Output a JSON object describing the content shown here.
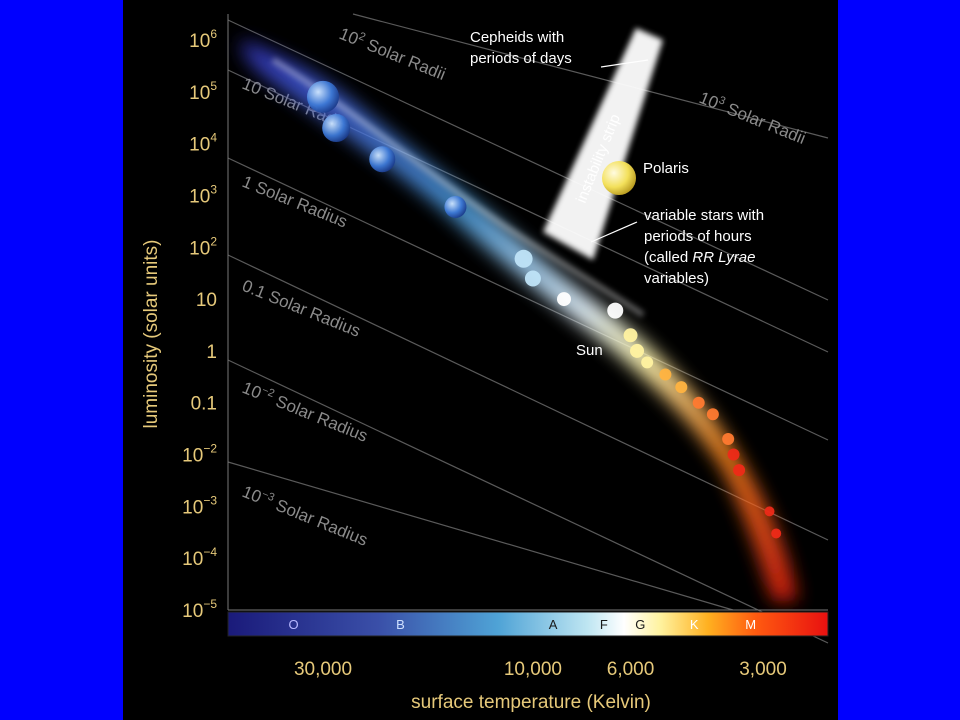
{
  "chart_data": {
    "type": "scatter",
    "xlabel": "surface temperature (Kelvin)",
    "ylabel": "luminosity (solar units)",
    "x_scale": "log-reversed",
    "y_scale": "log",
    "ylim": [
      1e-05,
      1000000.0
    ],
    "x_ticks": [
      {
        "value": 30000,
        "label": "30,000"
      },
      {
        "value": 10000,
        "label": "10,000"
      },
      {
        "value": 6000,
        "label": "6,000"
      },
      {
        "value": 3000,
        "label": "3,000"
      }
    ],
    "y_ticks": [
      {
        "value": 1000000.0,
        "base": "10",
        "exp": "6"
      },
      {
        "value": 100000.0,
        "base": "10",
        "exp": "5"
      },
      {
        "value": 10000.0,
        "base": "10",
        "exp": "4"
      },
      {
        "value": 1000.0,
        "base": "10",
        "exp": "3"
      },
      {
        "value": 100.0,
        "base": "10",
        "exp": "2"
      },
      {
        "value": 10,
        "base": "10",
        "exp": ""
      },
      {
        "value": 1,
        "base": "1",
        "exp": ""
      },
      {
        "value": 0.1,
        "base": "0.1",
        "exp": ""
      },
      {
        "value": 0.01,
        "base": "10",
        "exp": "−2"
      },
      {
        "value": 0.001,
        "base": "10",
        "exp": "−3"
      },
      {
        "value": 0.0001,
        "base": "10",
        "exp": "−4"
      },
      {
        "value": 1e-05,
        "base": "10",
        "exp": "−5"
      }
    ],
    "spectral_classes": [
      {
        "label": "O",
        "temp": 35000
      },
      {
        "label": "B",
        "temp": 20000
      },
      {
        "label": "A",
        "temp": 9000
      },
      {
        "label": "F",
        "temp": 6900
      },
      {
        "label": "G",
        "temp": 5700
      },
      {
        "label": "K",
        "temp": 4300
      },
      {
        "label": "M",
        "temp": 3200
      }
    ],
    "radius_lines": [
      {
        "pre": "10",
        "exp": "3",
        "post": " Solar Radii",
        "gridline": true
      },
      {
        "pre": "10",
        "exp": "2",
        "post": " Solar Radii",
        "gridline": true
      },
      {
        "pre": "10",
        "exp": "",
        "post": " Solar Radii",
        "gridline": true
      },
      {
        "pre": "1",
        "exp": "",
        "post": " Solar Radius",
        "gridline": true
      },
      {
        "pre": "0.1",
        "exp": "",
        "post": " Solar Radius",
        "gridline": true
      },
      {
        "pre": "10",
        "exp": "−2",
        "post": " Solar Radius",
        "gridline": true
      },
      {
        "pre": "10",
        "exp": "−3",
        "post": " Solar Radius",
        "gridline": true
      }
    ],
    "main_sequence": [
      {
        "temp": 30000,
        "lum": 80000,
        "size": 16
      },
      {
        "temp": 28000,
        "lum": 20000,
        "size": 14
      },
      {
        "temp": 22000,
        "lum": 5000,
        "size": 13
      },
      {
        "temp": 15000,
        "lum": 600,
        "size": 11
      },
      {
        "temp": 10500,
        "lum": 60,
        "size": 9
      },
      {
        "temp": 10000,
        "lum": 25,
        "size": 8
      },
      {
        "temp": 8500,
        "lum": 10,
        "size": 7
      },
      {
        "temp": 6500,
        "lum": 6,
        "size": 8
      },
      {
        "temp": 6000,
        "lum": 2,
        "size": 7
      },
      {
        "temp": 5800,
        "lum": 1,
        "size": 7
      },
      {
        "temp": 5500,
        "lum": 0.6,
        "size": 6
      },
      {
        "temp": 5000,
        "lum": 0.35,
        "size": 6
      },
      {
        "temp": 4600,
        "lum": 0.2,
        "size": 6
      },
      {
        "temp": 4200,
        "lum": 0.1,
        "size": 6
      },
      {
        "temp": 3900,
        "lum": 0.06,
        "size": 6
      },
      {
        "temp": 3600,
        "lum": 0.02,
        "size": 6
      },
      {
        "temp": 3500,
        "lum": 0.01,
        "size": 6
      },
      {
        "temp": 3400,
        "lum": 0.005,
        "size": 6
      },
      {
        "temp": 2900,
        "lum": 0.0008,
        "size": 5
      },
      {
        "temp": 2800,
        "lum": 0.0003,
        "size": 5
      }
    ],
    "named_stars": [
      {
        "name": "Polaris",
        "temp": 6000,
        "lum": 2500,
        "size": 17
      },
      {
        "name": "Sun",
        "temp": 5800,
        "lum": 1,
        "size": 7
      }
    ],
    "annotations": {
      "instability_strip": "instability strip",
      "cepheids": [
        "Cepheids with",
        "periods of days"
      ],
      "rr_lyrae": [
        "variable stars with",
        "periods of hours",
        "(called ",
        "RR Lyrae",
        "variables)"
      ],
      "polaris": "Polaris",
      "sun": "Sun"
    },
    "colors": {
      "axis_text": "#e6c97a",
      "radius_lines": "#5a5a5a",
      "slide_border": "#0000ff"
    }
  }
}
